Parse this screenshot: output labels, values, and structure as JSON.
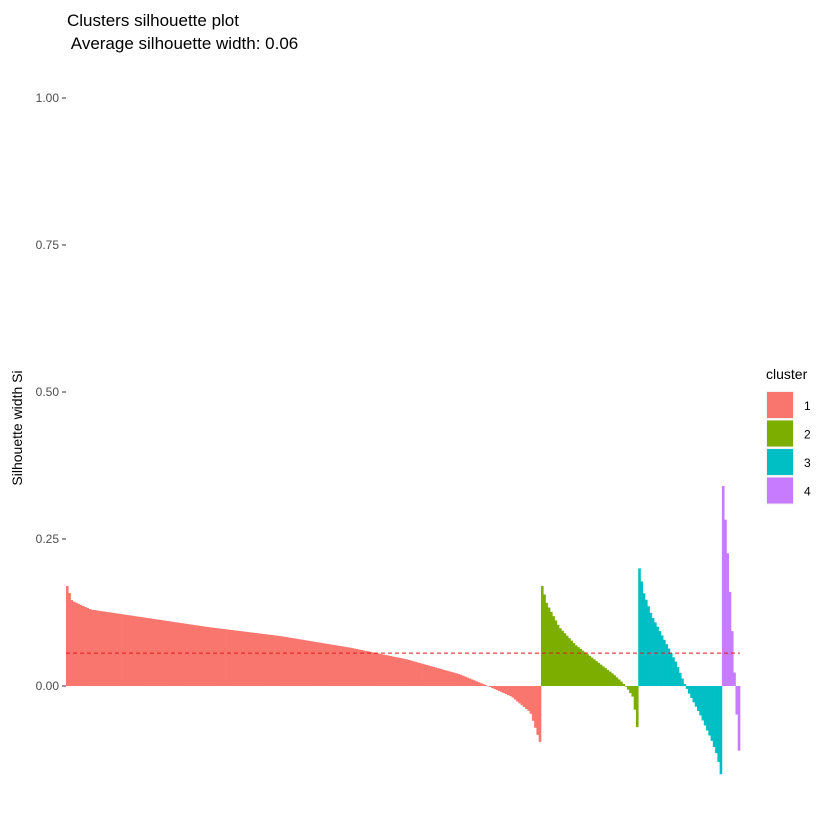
{
  "chart_data": {
    "type": "bar",
    "title": "Clusters silhouette plot",
    "subtitle": " Average silhouette width: 0.06",
    "ylabel": "Silhouette width Si",
    "xlabel": "",
    "ylim": [
      -0.15,
      1.0
    ],
    "yticks": [
      0.0,
      0.25,
      0.5,
      0.75,
      1.0
    ],
    "ytick_labels": [
      "0.00",
      "0.25",
      "0.50",
      "0.75",
      "1.00"
    ],
    "average_silhouette": 0.056,
    "average_line_color": "#e41a1c",
    "grid": false,
    "legend": {
      "title": "cluster",
      "position": "right"
    },
    "series": [
      {
        "name": "1",
        "color": "#F8766D",
        "count": 210,
        "profile": [
          [
            0,
            0.17
          ],
          [
            0.01,
            0.145
          ],
          [
            0.05,
            0.13
          ],
          [
            0.15,
            0.118
          ],
          [
            0.3,
            0.1
          ],
          [
            0.45,
            0.085
          ],
          [
            0.6,
            0.065
          ],
          [
            0.72,
            0.045
          ],
          [
            0.83,
            0.02
          ],
          [
            0.89,
            0.0
          ],
          [
            0.94,
            -0.018
          ],
          [
            0.98,
            -0.045
          ],
          [
            1.0,
            -0.095
          ]
        ]
      },
      {
        "name": "2",
        "color": "#7CAE00",
        "count": 43,
        "profile": [
          [
            0,
            0.17
          ],
          [
            0.05,
            0.14
          ],
          [
            0.18,
            0.1
          ],
          [
            0.35,
            0.07
          ],
          [
            0.55,
            0.045
          ],
          [
            0.75,
            0.02
          ],
          [
            0.85,
            0.005
          ],
          [
            0.9,
            -0.005
          ],
          [
            0.96,
            -0.02
          ],
          [
            1.0,
            -0.07
          ]
        ]
      },
      {
        "name": "3",
        "color": "#00BFC4",
        "count": 37,
        "profile": [
          [
            0,
            0.2
          ],
          [
            0.05,
            0.16
          ],
          [
            0.15,
            0.12
          ],
          [
            0.3,
            0.08
          ],
          [
            0.45,
            0.04
          ],
          [
            0.55,
            0.005
          ],
          [
            0.6,
            -0.01
          ],
          [
            0.75,
            -0.05
          ],
          [
            0.88,
            -0.09
          ],
          [
            0.96,
            -0.12
          ],
          [
            1.0,
            -0.15
          ]
        ]
      },
      {
        "name": "4",
        "color": "#C77CFF",
        "count": 8,
        "profile": [
          [
            0,
            0.34
          ],
          [
            0.15,
            0.28
          ],
          [
            0.3,
            0.22
          ],
          [
            0.45,
            0.15
          ],
          [
            0.6,
            0.08
          ],
          [
            0.72,
            0.02
          ],
          [
            0.78,
            -0.01
          ],
          [
            0.88,
            -0.06
          ],
          [
            1.0,
            -0.11
          ]
        ]
      }
    ]
  }
}
